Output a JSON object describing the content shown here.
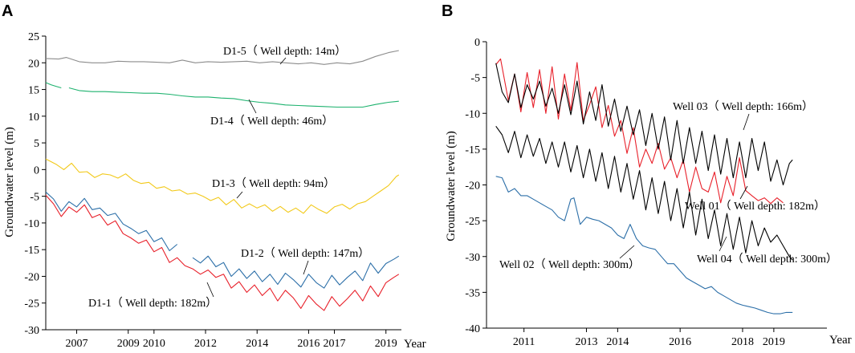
{
  "chart_data": [
    {
      "type": "line",
      "panel_label": "A",
      "ylabel": "Groundwater level (m)",
      "xlabel": "Year",
      "ylim": [
        -30,
        25
      ],
      "yticks": [
        25,
        20,
        15,
        10,
        5,
        0,
        -5,
        -10,
        -15,
        -20,
        -25,
        -30
      ],
      "xlim": [
        2005.8,
        2019.6
      ],
      "xticks": [
        {
          "label": "2007",
          "value": 2007
        },
        {
          "label": "2009",
          "value": 2009
        },
        {
          "label": "2010",
          "value": 2010
        },
        {
          "label": "2012",
          "value": 2012
        },
        {
          "label": "2014",
          "value": 2014
        },
        {
          "label": "2016",
          "value": 2016
        },
        {
          "label": "2017",
          "value": 2017
        },
        {
          "label": "2019",
          "value": 2019
        }
      ],
      "series": [
        {
          "name": "D1-5",
          "label": "D1-5（ Well depth: 14m）",
          "color": "#8c8c8c",
          "x": [
            2005.8,
            2006.3,
            2006.6,
            2007.1,
            2007.6,
            2008.1,
            2008.6,
            2009.1,
            2009.6,
            2010.1,
            2010.6,
            2011.1,
            2011.6,
            2012.1,
            2012.6,
            2013.1,
            2013.6,
            2014.1,
            2014.6,
            2015.1,
            2015.6,
            2016.1,
            2016.6,
            2017.1,
            2017.6,
            2018.1,
            2018.6,
            2019.1,
            2019.5
          ],
          "y": [
            20.8,
            20.7,
            21.0,
            20.2,
            20.0,
            20.0,
            20.3,
            20.2,
            20.2,
            20.1,
            20.0,
            20.5,
            20.0,
            20.2,
            20.1,
            20.2,
            20.3,
            20.0,
            20.2,
            20.0,
            19.8,
            20.0,
            19.7,
            20.0,
            19.8,
            20.3,
            21.2,
            21.9,
            22.3
          ]
        },
        {
          "name": "D1-4",
          "label": "D1-4（ Well depth: 46m）",
          "color": "#1db26e",
          "segments": [
            {
              "x": [
                2005.8,
                2006.0,
                2006.2,
                2006.4
              ],
              "y": [
                16.3,
                15.9,
                15.6,
                15.3
              ]
            },
            {
              "x": [
                2006.7,
                2007.1,
                2007.6,
                2008.1,
                2008.6,
                2009.1,
                2009.6,
                2010.1,
                2010.6,
                2011.1,
                2011.6,
                2012.1,
                2012.6,
                2013.1,
                2013.6,
                2014.1,
                2014.6,
                2015.1,
                2015.6,
                2016.1,
                2016.6,
                2017.1,
                2017.6,
                2018.1,
                2018.6,
                2019.1,
                2019.5
              ],
              "y": [
                15.3,
                14.8,
                14.6,
                14.6,
                14.5,
                14.4,
                14.3,
                14.3,
                14.1,
                13.8,
                13.6,
                13.6,
                13.4,
                13.3,
                12.9,
                12.6,
                12.4,
                12.1,
                12.0,
                11.9,
                11.8,
                11.7,
                11.7,
                11.7,
                12.2,
                12.6,
                12.8
              ]
            }
          ]
        },
        {
          "name": "D1-3",
          "label": "D1-3（ Well depth: 94m）",
          "color": "#f2c919",
          "x": [
            2005.8,
            2006.2,
            2006.5,
            2006.8,
            2007.1,
            2007.4,
            2007.7,
            2008.0,
            2008.3,
            2008.6,
            2008.9,
            2009.2,
            2009.5,
            2009.8,
            2010.1,
            2010.4,
            2010.7,
            2011.0,
            2011.3,
            2011.6,
            2011.9,
            2012.2,
            2012.5,
            2012.8,
            2013.1,
            2013.4,
            2013.7,
            2014.0,
            2014.3,
            2014.6,
            2014.9,
            2015.2,
            2015.5,
            2015.8,
            2016.1,
            2016.4,
            2016.7,
            2017.0,
            2017.3,
            2017.6,
            2017.9,
            2018.2,
            2018.5,
            2018.8,
            2019.1,
            2019.4,
            2019.5
          ],
          "y": [
            2.0,
            1.0,
            0.0,
            1.2,
            -0.5,
            -0.4,
            -1.5,
            -0.8,
            -1.0,
            -1.6,
            -0.8,
            -2.0,
            -2.6,
            -2.4,
            -3.5,
            -3.2,
            -4.0,
            -3.8,
            -4.6,
            -4.4,
            -5.0,
            -5.8,
            -5.2,
            -6.6,
            -5.6,
            -7.2,
            -6.4,
            -7.2,
            -6.6,
            -7.8,
            -6.9,
            -8.0,
            -7.2,
            -8.2,
            -6.6,
            -7.5,
            -8.2,
            -7.0,
            -6.5,
            -7.4,
            -6.4,
            -6.0,
            -5.0,
            -4.0,
            -3.0,
            -1.3,
            -1.0
          ]
        },
        {
          "name": "D1-2",
          "label": "D1-2（ Well depth: 147m）",
          "color": "#2c6fa8",
          "segments": [
            {
              "x": [
                2005.8,
                2006.1,
                2006.4,
                2006.7,
                2007.0,
                2007.3,
                2007.6,
                2007.9,
                2008.2,
                2008.5,
                2008.8,
                2009.1,
                2009.4,
                2009.7,
                2010.0,
                2010.3,
                2010.6,
                2010.9
              ],
              "y": [
                -4.2,
                -5.5,
                -7.8,
                -6.0,
                -7.0,
                -5.4,
                -7.5,
                -7.2,
                -8.6,
                -8.2,
                -10.2,
                -11.0,
                -12.0,
                -11.4,
                -13.5,
                -12.8,
                -15.2,
                -14.0
              ]
            },
            {
              "x": [
                2011.5,
                2011.8,
                2012.1,
                2012.4,
                2012.7,
                2013.0,
                2013.3,
                2013.6,
                2013.9,
                2014.2,
                2014.5,
                2014.8,
                2015.1,
                2015.4,
                2015.7,
                2016.0,
                2016.3,
                2016.6,
                2016.9,
                2017.2,
                2017.5,
                2017.8,
                2018.1,
                2018.4,
                2018.7,
                2019.0,
                2019.3,
                2019.5
              ],
              "y": [
                -16.5,
                -17.5,
                -16.2,
                -18.2,
                -17.4,
                -20.0,
                -18.6,
                -20.4,
                -19.0,
                -21.0,
                -19.6,
                -21.5,
                -19.4,
                -20.6,
                -22.0,
                -19.6,
                -21.2,
                -22.2,
                -19.8,
                -21.6,
                -20.2,
                -19.0,
                -20.8,
                -17.5,
                -19.4,
                -17.6,
                -16.8,
                -16.2
              ]
            }
          ]
        },
        {
          "name": "D1-1",
          "label": "D1-1（ Well depth: 182m）",
          "color": "#e8202a",
          "x": [
            2005.8,
            2006.1,
            2006.4,
            2006.7,
            2007.0,
            2007.3,
            2007.6,
            2007.9,
            2008.2,
            2008.5,
            2008.8,
            2009.1,
            2009.4,
            2009.7,
            2010.0,
            2010.3,
            2010.6,
            2010.9,
            2011.2,
            2011.5,
            2011.8,
            2012.1,
            2012.4,
            2012.7,
            2013.0,
            2013.3,
            2013.6,
            2013.9,
            2014.2,
            2014.5,
            2014.8,
            2015.1,
            2015.4,
            2015.7,
            2016.0,
            2016.3,
            2016.6,
            2016.9,
            2017.2,
            2017.5,
            2017.8,
            2018.1,
            2018.4,
            2018.7,
            2019.0,
            2019.3,
            2019.5
          ],
          "y": [
            -4.8,
            -6.4,
            -8.8,
            -7.0,
            -8.0,
            -6.6,
            -9.0,
            -8.4,
            -10.4,
            -9.6,
            -12.0,
            -12.8,
            -13.8,
            -13.2,
            -15.4,
            -14.6,
            -17.4,
            -16.5,
            -18.0,
            -18.6,
            -19.6,
            -18.8,
            -20.2,
            -19.6,
            -22.2,
            -21.0,
            -23.0,
            -21.6,
            -23.6,
            -22.2,
            -24.6,
            -22.6,
            -24.0,
            -26.0,
            -23.6,
            -25.2,
            -26.4,
            -23.8,
            -25.6,
            -24.2,
            -22.6,
            -24.6,
            -21.8,
            -23.8,
            -21.2,
            -20.2,
            -19.6
          ]
        }
      ]
    },
    {
      "type": "line",
      "panel_label": "B",
      "ylabel": "Groundwater level (m)",
      "xlabel": "Year",
      "ylim": [
        -40,
        0
      ],
      "yticks": [
        0,
        -5,
        -10,
        -15,
        -20,
        -25,
        -30,
        -35,
        -40
      ],
      "xlim": [
        2009.8,
        2020.7
      ],
      "xticks": [
        {
          "label": "2011",
          "value": 2011
        },
        {
          "label": "2013",
          "value": 2013
        },
        {
          "label": "2014",
          "value": 2014
        },
        {
          "label": "2016",
          "value": 2016
        },
        {
          "label": "2018",
          "value": 2018
        },
        {
          "label": "2019",
          "value": 2019
        }
      ],
      "series": [
        {
          "name": "Well 01",
          "label": "Well 01（ Well depth: 182m）",
          "color": "#e8202a",
          "x": [
            2010.1,
            2010.25,
            2010.5,
            2010.7,
            2010.9,
            2011.1,
            2011.3,
            2011.5,
            2011.7,
            2011.9,
            2012.1,
            2012.3,
            2012.5,
            2012.7,
            2012.9,
            2013.1,
            2013.3,
            2013.5,
            2013.7,
            2013.9,
            2014.1,
            2014.3,
            2014.5,
            2014.7,
            2014.9,
            2015.1,
            2015.3,
            2015.5,
            2015.7,
            2015.9,
            2016.1,
            2016.3,
            2016.5,
            2016.7,
            2016.9,
            2017.1,
            2017.3,
            2017.5,
            2017.7,
            2017.9,
            2018.1,
            2018.3,
            2018.5,
            2018.7,
            2018.9,
            2019.1,
            2019.3
          ],
          "y": [
            -3.2,
            -2.4,
            -8.2,
            -4.5,
            -9.8,
            -4.3,
            -9.2,
            -3.9,
            -10.0,
            -3.5,
            -10.8,
            -4.5,
            -9.6,
            -2.9,
            -11.0,
            -8.8,
            -6.3,
            -12.0,
            -8.9,
            -13.2,
            -11.0,
            -15.6,
            -12.0,
            -17.5,
            -15.0,
            -17.0,
            -14.2,
            -17.8,
            -16.2,
            -19.0,
            -16.5,
            -21.0,
            -17.5,
            -20.5,
            -21.0,
            -18.2,
            -22.5,
            -18.8,
            -21.5,
            -16.2,
            -20.8,
            -21.5,
            -22.2,
            -21.8,
            -22.6,
            -21.8,
            -22.5
          ]
        },
        {
          "name": "Well 03",
          "label": "Well 03（ Well depth: 166m）",
          "color": "#000000",
          "x": [
            2010.1,
            2010.3,
            2010.5,
            2010.7,
            2010.9,
            2011.1,
            2011.3,
            2011.5,
            2011.7,
            2011.9,
            2012.1,
            2012.3,
            2012.5,
            2012.7,
            2012.9,
            2013.1,
            2013.3,
            2013.5,
            2013.7,
            2013.9,
            2014.1,
            2014.3,
            2014.5,
            2014.7,
            2014.9,
            2015.1,
            2015.3,
            2015.5,
            2015.7,
            2015.9,
            2016.1,
            2016.3,
            2016.5,
            2016.7,
            2016.9,
            2017.1,
            2017.3,
            2017.5,
            2017.7,
            2017.9,
            2018.1,
            2018.3,
            2018.5,
            2018.7,
            2018.9,
            2019.1,
            2019.3,
            2019.5,
            2019.6
          ],
          "y": [
            -3.0,
            -7.0,
            -8.5,
            -4.5,
            -9.2,
            -6.0,
            -8.0,
            -5.5,
            -9.0,
            -6.5,
            -10.0,
            -6.0,
            -10.2,
            -5.5,
            -11.5,
            -7.0,
            -11.0,
            -6.0,
            -11.8,
            -8.0,
            -12.5,
            -9.0,
            -13.0,
            -9.5,
            -14.5,
            -10.0,
            -15.0,
            -10.5,
            -16.5,
            -11.0,
            -17.0,
            -12.0,
            -17.0,
            -12.5,
            -18.0,
            -13.0,
            -18.5,
            -13.5,
            -19.0,
            -14.0,
            -19.0,
            -13.5,
            -18.0,
            -14.0,
            -19.5,
            -16.5,
            -20.0,
            -17.0,
            -16.5
          ]
        },
        {
          "name": "Well 04",
          "label": "Well 04（ Well depth: 300m）",
          "color": "#000000",
          "x": [
            2010.1,
            2010.3,
            2010.5,
            2010.7,
            2010.9,
            2011.1,
            2011.3,
            2011.5,
            2011.7,
            2011.9,
            2012.1,
            2012.3,
            2012.5,
            2012.7,
            2012.9,
            2013.1,
            2013.3,
            2013.5,
            2013.7,
            2013.9,
            2014.1,
            2014.3,
            2014.5,
            2014.7,
            2014.9,
            2015.1,
            2015.3,
            2015.5,
            2015.7,
            2015.9,
            2016.1,
            2016.3,
            2016.5,
            2016.7,
            2016.9,
            2017.1,
            2017.3,
            2017.5,
            2017.7,
            2017.9,
            2018.1,
            2018.3,
            2018.5,
            2018.7,
            2018.9,
            2019.1,
            2019.3,
            2019.5,
            2019.6
          ],
          "y": [
            -11.8,
            -13.0,
            -15.5,
            -12.5,
            -16.2,
            -13.0,
            -16.0,
            -13.5,
            -17.0,
            -14.0,
            -17.5,
            -14.0,
            -18.2,
            -14.5,
            -19.0,
            -15.0,
            -19.5,
            -15.5,
            -20.5,
            -16.0,
            -21.0,
            -17.0,
            -22.0,
            -18.0,
            -23.5,
            -19.0,
            -24.0,
            -19.5,
            -25.0,
            -20.5,
            -26.0,
            -21.0,
            -27.0,
            -22.0,
            -27.5,
            -23.5,
            -28.5,
            -24.0,
            -29.0,
            -24.5,
            -29.5,
            -25.0,
            -28.5,
            -26.0,
            -28.0,
            -27.0,
            -28.5,
            -30.0,
            -30.5
          ]
        },
        {
          "name": "Well 02",
          "label": "Well 02（ Well depth: 300m）",
          "color": "#2c6fa8",
          "x": [
            2010.1,
            2010.3,
            2010.5,
            2010.7,
            2010.9,
            2011.1,
            2011.3,
            2011.5,
            2011.7,
            2011.9,
            2012.1,
            2012.3,
            2012.5,
            2012.6,
            2012.8,
            2013.0,
            2013.2,
            2013.4,
            2013.6,
            2013.8,
            2014.0,
            2014.2,
            2014.4,
            2014.6,
            2014.8,
            2015.0,
            2015.2,
            2015.4,
            2015.6,
            2015.8,
            2016.0,
            2016.2,
            2016.4,
            2016.6,
            2016.8,
            2017.0,
            2017.2,
            2017.4,
            2017.6,
            2017.8,
            2018.0,
            2018.2,
            2018.4,
            2018.6,
            2018.8,
            2019.0,
            2019.2,
            2019.4,
            2019.6
          ],
          "y": [
            -18.8,
            -19.0,
            -21.0,
            -20.5,
            -21.5,
            -21.5,
            -22.0,
            -22.5,
            -23.0,
            -23.5,
            -24.5,
            -25.0,
            -22.0,
            -21.8,
            -25.5,
            -24.5,
            -24.8,
            -25.0,
            -25.5,
            -26.0,
            -27.0,
            -27.5,
            -25.5,
            -27.5,
            -28.5,
            -28.8,
            -29.0,
            -30.0,
            -31.0,
            -31.0,
            -32.0,
            -33.0,
            -33.5,
            -34.0,
            -34.5,
            -34.2,
            -35.0,
            -35.5,
            -36.0,
            -36.5,
            -36.8,
            -37.0,
            -37.2,
            -37.5,
            -37.8,
            -38.0,
            -38.0,
            -37.8,
            -37.8
          ]
        }
      ]
    }
  ]
}
